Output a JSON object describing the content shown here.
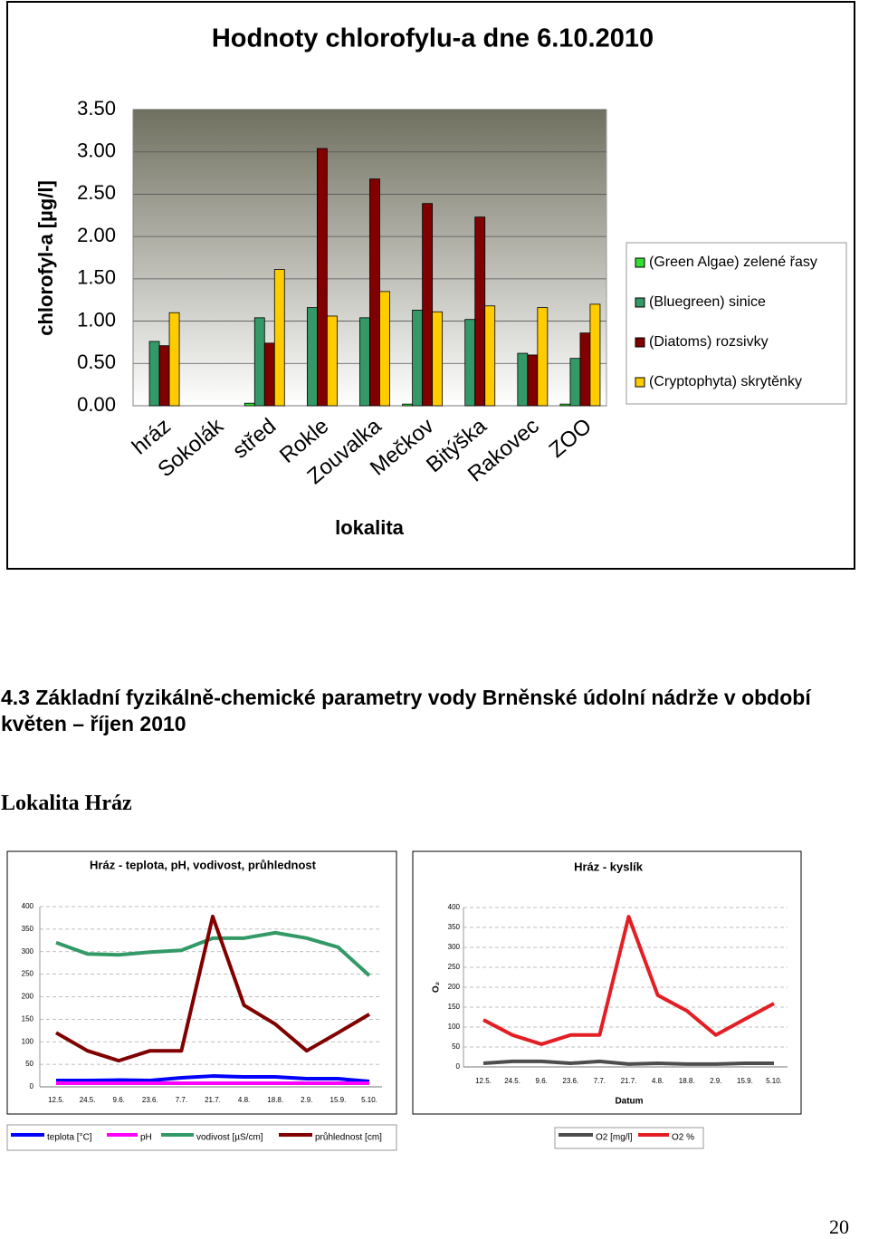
{
  "heading": "4.3 Základní fyzikálně-chemické parametry vody Brněnské údolní nádrže v období květen – říjen 2010",
  "section": "Lokalita Hráz",
  "page_number": "20",
  "chart_data": [
    {
      "type": "bar",
      "title": "Hodnoty chlorofylu-a dne 6.10.2010",
      "y_label": "chlorofyl-a [µg/l]",
      "x_label": "lokalita",
      "categories": [
        "hráz",
        "Sokolák",
        "střed",
        "Rokle",
        "Zouvalka",
        "Mečkov",
        "Bitýška",
        "Rakovec",
        "ZOO"
      ],
      "series": [
        {
          "name": "(Green Algae) zelené řasy",
          "color": "#33dd33",
          "values": [
            0,
            0,
            0.03,
            0,
            0,
            0.02,
            0,
            0,
            0.02
          ]
        },
        {
          "name": "(Bluegreen) sinice",
          "color": "#339966",
          "values": [
            0.76,
            0,
            1.04,
            1.16,
            1.04,
            1.13,
            1.02,
            0.62,
            0.56
          ]
        },
        {
          "name": "(Diatoms) rozsivky",
          "color": "#800000",
          "values": [
            0.71,
            0,
            0.74,
            3.04,
            2.68,
            2.39,
            2.23,
            0.6,
            0.86
          ]
        },
        {
          "name": "(Cryptophyta) skrytěnky",
          "color": "#ffcc00",
          "values": [
            1.1,
            0,
            1.61,
            1.06,
            1.35,
            1.11,
            1.18,
            1.16,
            1.2
          ]
        }
      ],
      "ylim": [
        0,
        3.5
      ],
      "yticks": [
        {
          "value": 0,
          "label": "0.00"
        },
        {
          "value": 0.5,
          "label": "0.50"
        },
        {
          "value": 1,
          "label": "1.00"
        },
        {
          "value": 1.5,
          "label": "1.50"
        },
        {
          "value": 2,
          "label": "2.00"
        },
        {
          "value": 2.5,
          "label": "2.50"
        },
        {
          "value": 3,
          "label": "3.00"
        },
        {
          "value": 3.5,
          "label": "3.50"
        }
      ],
      "grid": true,
      "legend": "right"
    },
    {
      "type": "line",
      "title": "Hráz - teplota, pH, vodivost, průhlednost",
      "categories": [
        "12.5.",
        "24.5.",
        "9.6.",
        "23.6.",
        "7.7.",
        "21.7.",
        "4.8.",
        "18.8.",
        "2.9.",
        "15.9.",
        "5.10."
      ],
      "series": [
        {
          "name": "teplota [°C]",
          "color": "#0000ff",
          "values": [
            14,
            14,
            15,
            14,
            20,
            24,
            22,
            22,
            18,
            18,
            12
          ]
        },
        {
          "name": "pH",
          "color": "#ff00ff",
          "values": [
            8,
            8,
            8,
            8,
            8,
            8,
            8,
            8,
            8,
            8,
            8
          ]
        },
        {
          "name": "vodivost [µS/cm]",
          "color": "#339966",
          "values": [
            320,
            295,
            293,
            299,
            303,
            330,
            330,
            342,
            330,
            310,
            247
          ]
        },
        {
          "name": "průhlednost [cm]",
          "color": "#800000",
          "values": [
            120,
            80,
            58,
            80,
            80,
            378,
            181,
            139,
            80,
            120,
            161
          ]
        }
      ],
      "ylim": [
        0,
        400
      ],
      "yticks": [
        0,
        50,
        100,
        150,
        200,
        250,
        300,
        350,
        400
      ],
      "grid": true,
      "legend": "bottom"
    },
    {
      "type": "line",
      "title": "Hráz - kyslík",
      "x_label": "Datum",
      "y_label": "O₂",
      "categories": [
        "12.5.",
        "24.5.",
        "9.6.",
        "23.6.",
        "7.7.",
        "21.7.",
        "4.8.",
        "18.8.",
        "2.9.",
        "15.9.",
        "5.10."
      ],
      "series": [
        {
          "name": "O2 [mg/l]",
          "color": "#4d4d4d",
          "values": [
            9,
            14,
            14,
            9,
            14,
            7,
            9,
            7,
            7,
            9,
            9
          ]
        },
        {
          "name": "O2 %",
          "color": "#e31e24",
          "values": [
            118,
            80,
            57,
            80,
            80,
            377,
            180,
            141,
            80,
            120,
            159
          ]
        }
      ],
      "ylim": [
        0,
        400
      ],
      "yticks": [
        0,
        50,
        100,
        150,
        200,
        250,
        300,
        350,
        400
      ],
      "grid": true,
      "legend": "bottom"
    }
  ]
}
